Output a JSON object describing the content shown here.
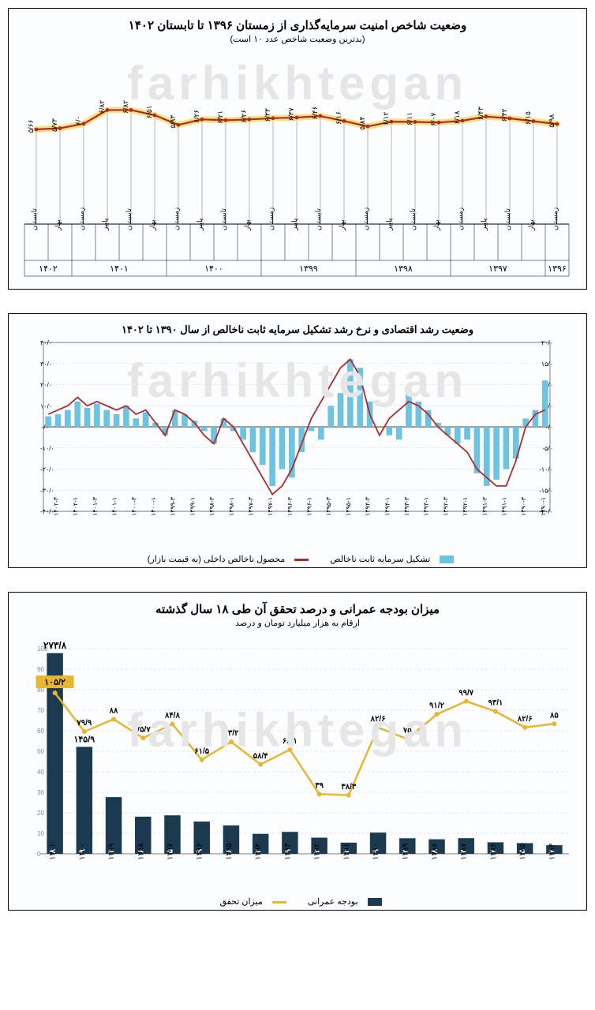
{
  "colors": {
    "line_red": "#b32a2a",
    "line_glow": "#f7e07a",
    "bar_blue": "#6ec3e0",
    "bar_navy": "#1b3a4f",
    "line_gold": "#e8b72f",
    "gold_box": "#e8b72f",
    "grid": "#c8d4da",
    "axis": "#000000",
    "text": "#000000",
    "bg": "#fbfdff",
    "watermark": "#ededed"
  },
  "watermark_text": "farhikhtegan",
  "chart1": {
    "title": "وضعیت شاخص امنیت سرمایه‌گذاری از زمستان ۱۳۹۶ تا تابستان ۱۴۰۲",
    "subtitle": "(بدترین وضعیت شاخص عدد ۱۰ است)",
    "type": "line_with_stems",
    "ylim": [
      0,
      10
    ],
    "title_fontsize": 15,
    "label_fontsize": 9,
    "categories": [
      "زمستان",
      "بهار",
      "تابستان",
      "پاییز",
      "زمستان",
      "بهار",
      "تابستان",
      "پاییز",
      "زمستان",
      "بهار",
      "تابستان",
      "پاییز",
      "زمستان",
      "بهار",
      "تابستان",
      "پاییز",
      "زمستان",
      "بهار",
      "تابستان",
      "پاییز",
      "زمستان",
      "بهار",
      "تابستان"
    ],
    "values_text": [
      "۵/۹۸",
      "۶/۱۵",
      "۶/۳۲",
      "۶/۴۳",
      "۶/۱۸",
      "۶/۰۷",
      "۶/۱۱",
      "۶/۱۲",
      "۵/۸۴",
      "۶/۱۶",
      "۶/۴۶",
      "۶/۳۷",
      "۶/۳۳",
      "۶/۲۶",
      "۶/۲۱",
      "۶/۲۶",
      "۵/۹۳",
      "۶/۵۱",
      "۶/۸۲",
      "۶/۸۲",
      "۶/۰",
      "۵/۷۳",
      "۵/۶۶"
    ],
    "values": [
      5.98,
      6.15,
      6.32,
      6.43,
      6.18,
      6.07,
      6.11,
      6.12,
      5.84,
      6.16,
      6.46,
      6.37,
      6.33,
      6.26,
      6.21,
      6.26,
      5.93,
      6.51,
      6.82,
      6.82,
      6.0,
      5.73,
      5.66
    ],
    "year_groups": [
      {
        "label": "۱۳۹۶",
        "span": 1
      },
      {
        "label": "۱۳۹۷",
        "span": 4
      },
      {
        "label": "۱۳۹۸",
        "span": 4
      },
      {
        "label": "۱۳۹۹",
        "span": 4
      },
      {
        "label": "۱۴۰۰",
        "span": 4
      },
      {
        "label": "۱۴۰۱",
        "span": 4
      },
      {
        "label": "۱۴۰۲",
        "span": 2
      }
    ]
  },
  "chart2": {
    "title": "وضعیت رشد اقتصادی و نرخ رشد تشکیل سرمایه ثابت ناخالص از سال ۱۳۹۰ تا ۱۴۰۲",
    "type": "bar_line_dual_axis",
    "left_axis": {
      "lim": [
        -40,
        40
      ],
      "ticks": [
        -40,
        -30,
        -20,
        -10,
        0,
        10,
        20,
        30,
        40
      ],
      "labels": [
        "۴۰/۰-",
        "۳۰/۰-",
        "۲۰/۰-",
        "۱۰/۰-",
        "۰/۰",
        "۱۰/۰",
        "۲۰/۰",
        "۳۰/۰",
        "۴۰/۰"
      ]
    },
    "right_axis": {
      "lim": [
        -20,
        20
      ],
      "ticks": [
        -20,
        -15,
        -10,
        -5,
        0,
        5,
        10,
        15,
        20
      ],
      "labels": [
        "۲۰/۰-",
        "۱۵/۰-",
        "۱۰/۰-",
        "۵/۰-",
        "۰/۰",
        "۵/۰",
        "۱۰/۰",
        "۱۵/۰",
        "۲۰/۰"
      ]
    },
    "categories": [
      "۱۳۹۰-۱",
      "۱۳۹۰-۳",
      "۱۳۹۱-۱",
      "۱۳۹۱-۳",
      "۱۳۹۲-۱",
      "۱۳۹۲-۳",
      "۱۳۹۳-۱",
      "۱۳۹۳-۳",
      "۱۳۹۴-۱",
      "۱۳۹۴-۳",
      "۱۳۹۵-۱",
      "۱۳۹۵-۳",
      "۱۳۹۶-۱",
      "۱۳۹۶-۳",
      "۱۳۹۷-۱",
      "۱۳۹۷-۳",
      "۱۳۹۸-۱",
      "۱۳۹۸-۳",
      "۱۳۹۹-۱",
      "۱۳۹۹-۳",
      "۱۴۰۰-۱",
      "۱۴۰۰-۳",
      "۱۴۰۱-۱",
      "۱۴۰۱-۳",
      "۱۴۰۲-۱",
      "۱۴۰۲-۳"
    ],
    "bars": [
      22,
      8,
      4,
      -15,
      -20,
      -25,
      -28,
      -22,
      -6,
      -8,
      -4,
      2,
      8,
      12,
      16,
      -6,
      -4,
      0,
      12,
      28,
      32,
      16,
      10,
      -6,
      -2,
      -12,
      -24,
      -20,
      -28,
      -18,
      -12,
      -6,
      -2,
      4,
      -8,
      -2,
      3,
      6,
      8,
      -4,
      2,
      7,
      4,
      10,
      6,
      8,
      11,
      9,
      12,
      8,
      6,
      5
    ],
    "line": [
      4,
      3,
      0,
      -8,
      -14,
      -14,
      -12,
      -10,
      -6,
      -4,
      -2,
      0,
      3,
      5,
      6,
      4,
      2,
      -2,
      3,
      12,
      16,
      14,
      10,
      6,
      2,
      -4,
      -10,
      -14,
      -16,
      -12,
      -8,
      -4,
      0,
      2,
      -4,
      -2,
      1,
      3,
      4,
      -2,
      1,
      4,
      3,
      5,
      4,
      5,
      6,
      5,
      7,
      5,
      4,
      3
    ],
    "legend": {
      "bars": "تشکیل سرمایه ثابت ناخالص",
      "line": "محصول ناخالص داخلی (به قیمت بازار)"
    }
  },
  "chart3": {
    "title": "میزان بودجه عمرانی و درصد تحقق آن طی ۱۸ سال گذشته",
    "subtitle": "ارقام به هزار میلیارد تومان و درصد",
    "type": "bar_line",
    "left_axis": {
      "lim": [
        0,
        1000
      ],
      "ticks": [
        0,
        100,
        200,
        300,
        400,
        500,
        600,
        700,
        800,
        900,
        1000
      ]
    },
    "categories": [
      "۱۳۸۴",
      "۱۳۸۵",
      "۱۳۸۶",
      "۱۳۸۷",
      "۱۳۸۸",
      "۱۳۸۹",
      "۱۳۹۰",
      "۱۳۹۱",
      "۱۳۹۲",
      "۱۳۹۳",
      "۱۳۹۴",
      "۱۳۹۵",
      "۱۳۹۶",
      "۱۳۹۷",
      "۱۳۹۸",
      "۱۳۹۹",
      "۱۴۰۰",
      "۱۴۰۱"
    ],
    "bar_values": [
      11.7,
      14.5,
      15.7,
      21.3,
      19.8,
      21.2,
      28.9,
      15.2,
      22,
      29.9,
      27.2,
      38.6,
      43.9,
      52.5,
      50.6,
      77.4,
      145.9,
      273.8
    ],
    "bar_labels": [
      "۱۱/۷",
      "۱۴/۵",
      "۱۵/۷",
      "۲۱/۳",
      "۱۹/۸",
      "۲۱/۲",
      "۲۸/۹",
      "۱۵/۲",
      "۲۲",
      "۲۹/۹",
      "۲۷/۲",
      "۳۸/۶",
      "۴۳/۹",
      "۵۲/۵",
      "۵۰/۶",
      "۷۷/۴",
      "۱۴۵/۹",
      "۲۷۳/۸"
    ],
    "line_values": [
      85,
      82.6,
      93.1,
      99.7,
      91.2,
      75,
      82.6,
      38.3,
      39,
      68.1,
      58.4,
      73.2,
      61.5,
      84.8,
      75.7,
      88,
      79.9,
      105.2
    ],
    "line_labels": [
      "۸۵",
      "۸۲/۶",
      "۹۳/۱",
      "۹۹/۷",
      "۹۱/۲",
      "۷۵",
      "۸۲/۶",
      "۳۸/۳",
      "۳۹",
      "۶۸/۱",
      "۵۸/۴",
      "۷۳/۲",
      "۶۱/۵",
      "۸۴/۸",
      "۷۵/۷",
      "۸۸",
      "۷۹/۹",
      "۱۰۵/۲"
    ],
    "legend": {
      "bar": "بودجه عمرانی",
      "line": "میزان تحقق"
    },
    "highlight_last_label": "۱۰۵/۲"
  }
}
